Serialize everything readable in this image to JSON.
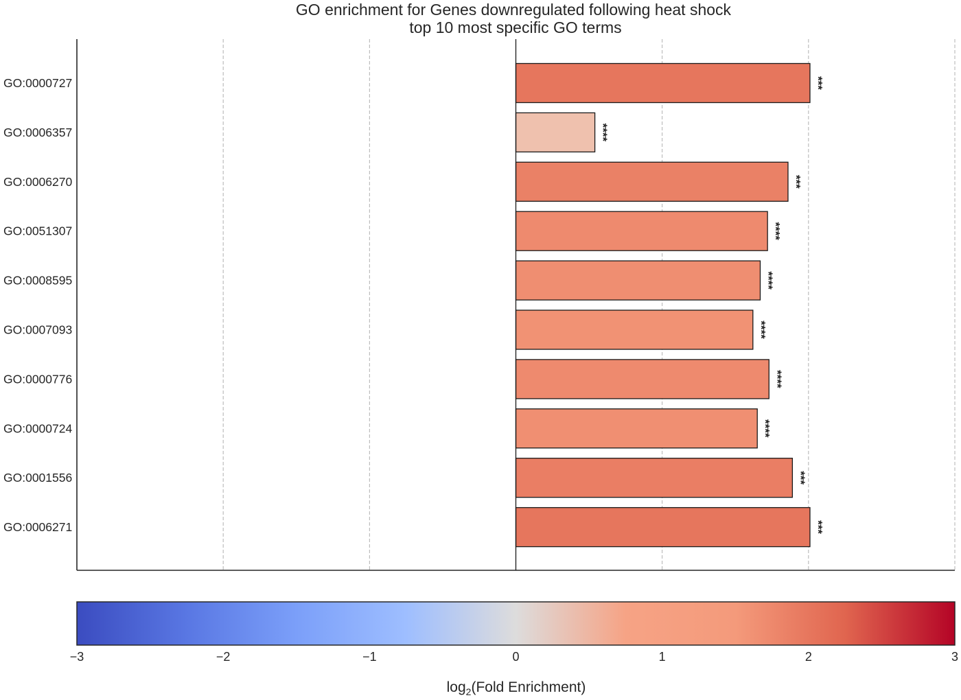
{
  "chart_data": {
    "type": "bar",
    "orientation": "horizontal",
    "title": "GO enrichment for Genes downregulated following heat shock",
    "subtitle": "top 10 most specific GO terms",
    "xlim": [
      -3,
      3
    ],
    "grid": true,
    "categories": [
      "GO:0000727",
      "GO:0006357",
      "GO:0006270",
      "GO:0051307",
      "GO:0008595",
      "GO:0007093",
      "GO:0000776",
      "GO:0000724",
      "GO:0001556",
      "GO:0006271"
    ],
    "values": [
      2.01,
      0.54,
      1.86,
      1.72,
      1.67,
      1.62,
      1.73,
      1.65,
      1.89,
      2.01
    ],
    "significance": [
      "***",
      "****",
      "***",
      "****",
      "****",
      "****",
      "****",
      "****",
      "***",
      "***"
    ],
    "colorbar": {
      "colormap": "coolwarm",
      "range": [
        -3,
        3
      ],
      "ticks": [
        "−3",
        "−2",
        "−1",
        "0",
        "1",
        "2",
        "3"
      ],
      "label_main": "log",
      "label_sub": "2",
      "label_rest": "(Fold Enrichment)"
    }
  }
}
